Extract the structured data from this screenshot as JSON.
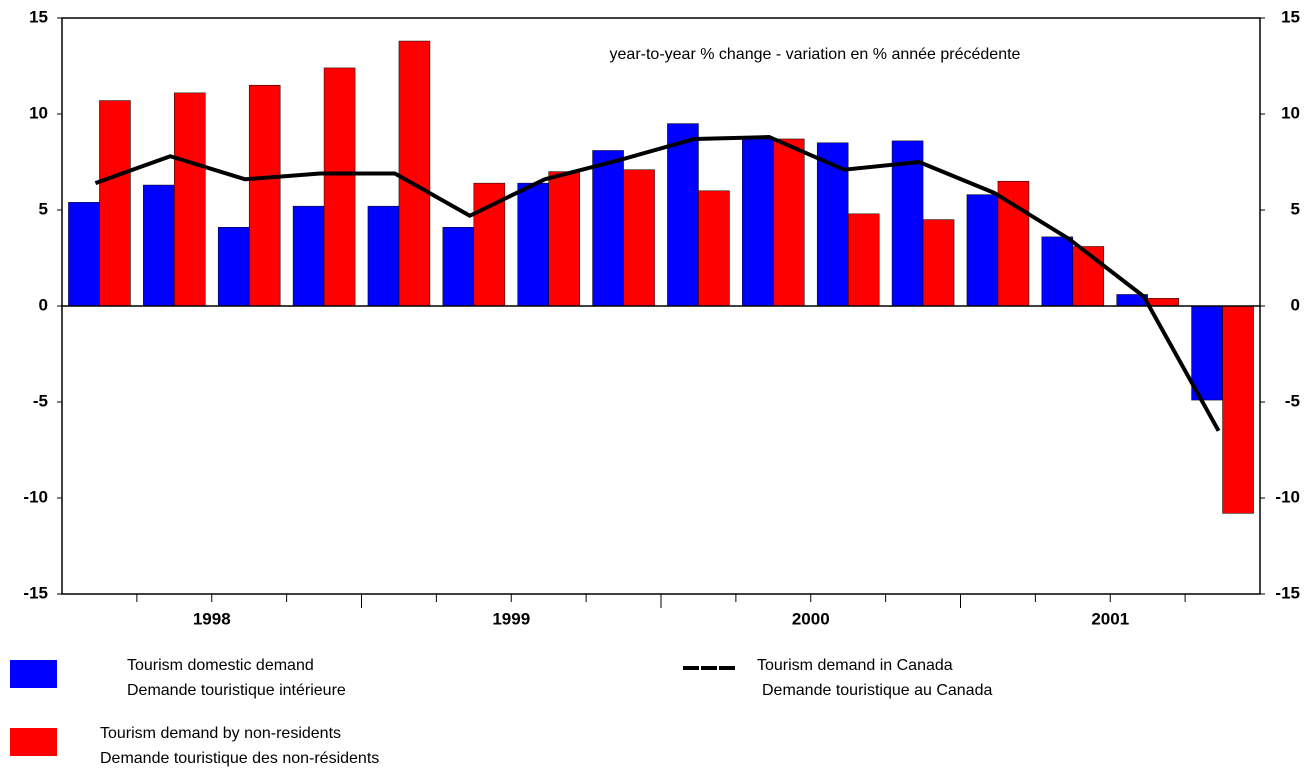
{
  "chart_data": {
    "type": "bar",
    "annotation": "year-to-year % change - variation en % année précédente",
    "categories": [
      null,
      null,
      null,
      null,
      null,
      null,
      null,
      null,
      null,
      null,
      null,
      null,
      null,
      null,
      null,
      null
    ],
    "year_labels": [
      "1998",
      "1999",
      "2000",
      "2001"
    ],
    "series": [
      {
        "name": "Tourism domestic demand",
        "name_fr": "Demande touristique intérieure",
        "color": "#0000ff",
        "kind": "bar",
        "values": [
          5.4,
          6.3,
          4.1,
          5.2,
          5.2,
          4.1,
          6.4,
          8.1,
          9.5,
          8.8,
          8.5,
          8.6,
          5.8,
          3.6,
          0.6,
          -4.9
        ]
      },
      {
        "name": "Tourism demand by non-residents",
        "name_fr": "Demande touristique des non-résidents",
        "color": "#ff0000",
        "kind": "bar",
        "values": [
          10.7,
          11.1,
          11.5,
          12.4,
          13.8,
          6.4,
          7.0,
          7.1,
          6.0,
          8.7,
          4.8,
          4.5,
          6.5,
          3.1,
          0.4,
          -10.8
        ]
      },
      {
        "name": "Tourism demand in Canada",
        "name_fr": "Demande touristique au Canada",
        "color": "#000000",
        "kind": "line",
        "values": [
          6.4,
          7.8,
          6.6,
          6.9,
          6.9,
          4.7,
          6.6,
          7.6,
          8.7,
          8.8,
          7.1,
          7.5,
          5.9,
          3.5,
          0.5,
          -6.5
        ]
      }
    ],
    "ylim": [
      -15,
      15
    ],
    "yticks": [
      -15,
      -10,
      -5,
      0,
      5,
      10,
      15
    ]
  }
}
